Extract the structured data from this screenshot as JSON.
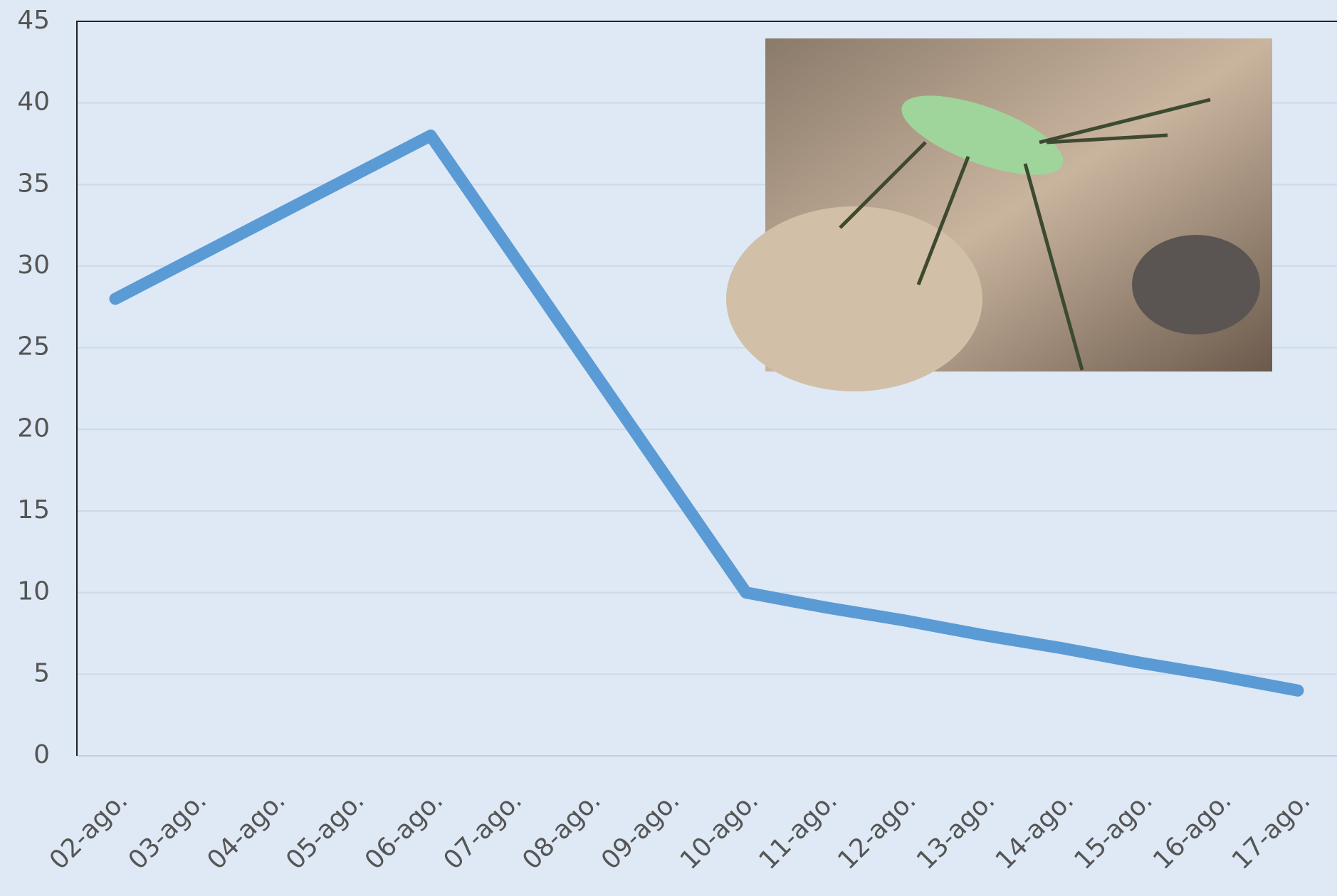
{
  "chart_data": {
    "type": "line",
    "categories": [
      "02-ago.",
      "03-ago.",
      "04-ago.",
      "05-ago.",
      "06-ago.",
      "07-ago.",
      "08-ago.",
      "09-ago.",
      "10-ago.",
      "11-ago.",
      "12-ago.",
      "13-ago.",
      "14-ago.",
      "15-ago.",
      "16-ago.",
      "17-ago."
    ],
    "series": [
      {
        "color": "#5b9bd5",
        "values": [
          28,
          30.5,
          33,
          35.5,
          38,
          31,
          24,
          17,
          10,
          9.1,
          8.3,
          7.4,
          6.6,
          5.7,
          4.9,
          4
        ]
      }
    ],
    "ylim": [
      0,
      45
    ],
    "yticks": [
      0,
      5,
      10,
      15,
      20,
      25,
      30,
      35,
      40,
      45
    ],
    "grid": true
  }
}
